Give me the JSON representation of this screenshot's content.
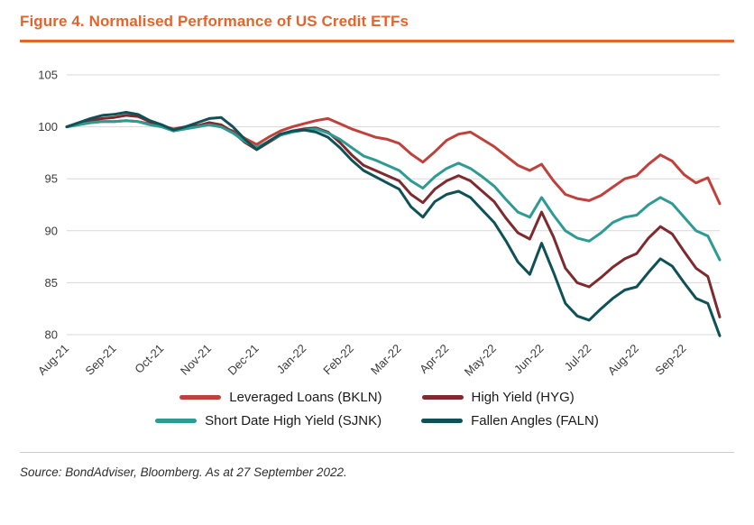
{
  "figure": {
    "title": "Figure 4. Normalised Performance of US Credit ETFs",
    "source": "Source: BondAdviser, Bloomberg. As at 27 September 2022."
  },
  "colors": {
    "title_orange": "#E2662C",
    "grid": "#D8D8D8",
    "axis_text": "#3B3B3B",
    "text": "#1A1A1A",
    "divider": "#C9C9C9"
  },
  "chart_data": {
    "type": "line",
    "title": "Figure 4. Normalised Performance of US Credit ETFs",
    "x_unit": "weekly points, 4 per month from Aug-21 to late Sep-22",
    "points_per_month": 4,
    "x_tick_labels": [
      "Aug-21",
      "Sep-21",
      "Oct-21",
      "Nov-21",
      "Dec-21",
      "Jan-22",
      "Feb-22",
      "Mar-22",
      "Apr-22",
      "May-22",
      "Jun-22",
      "Jul-22",
      "Aug-22",
      "Sep-22"
    ],
    "y_ticks": [
      105,
      100,
      95,
      90,
      85,
      80
    ],
    "ylim": [
      80,
      105
    ],
    "grid": "horizontal",
    "legend_position": "bottom",
    "series": [
      {
        "name": "Leveraged Loans (BKLN)",
        "color": "#C0413B",
        "values": [
          100.0,
          100.2,
          100.4,
          100.5,
          100.5,
          100.6,
          100.5,
          100.3,
          100.1,
          99.8,
          100.0,
          100.1,
          100.2,
          100.0,
          99.6,
          98.9,
          98.3,
          99.0,
          99.6,
          100.0,
          100.3,
          100.6,
          100.8,
          100.3,
          99.8,
          99.4,
          99.0,
          98.8,
          98.4,
          97.4,
          96.6,
          97.6,
          98.7,
          99.3,
          99.5,
          98.8,
          98.1,
          97.2,
          96.3,
          95.8,
          96.4,
          94.8,
          93.5,
          93.1,
          92.9,
          93.4,
          94.2,
          95.0,
          95.3,
          96.4,
          97.3,
          96.7,
          95.4,
          94.6,
          95.1,
          92.6
        ]
      },
      {
        "name": "High Yield (HYG)",
        "color": "#7E2A2E",
        "values": [
          100.0,
          100.3,
          100.6,
          100.8,
          100.9,
          101.1,
          101.0,
          100.5,
          100.1,
          99.7,
          99.9,
          100.1,
          100.4,
          100.2,
          99.5,
          98.5,
          97.8,
          98.5,
          99.2,
          99.6,
          99.8,
          99.9,
          99.5,
          98.5,
          97.3,
          96.3,
          95.8,
          95.3,
          94.8,
          93.5,
          92.7,
          94.0,
          94.8,
          95.3,
          94.8,
          93.8,
          92.8,
          91.2,
          89.8,
          89.2,
          91.8,
          89.4,
          86.4,
          85.0,
          84.6,
          85.5,
          86.5,
          87.3,
          87.8,
          89.3,
          90.4,
          89.7,
          88.0,
          86.4,
          85.6,
          81.7
        ]
      },
      {
        "name": "Short Date High Yield (SJNK)",
        "color": "#2D9B94",
        "values": [
          100.0,
          100.2,
          100.4,
          100.5,
          100.5,
          100.6,
          100.5,
          100.2,
          100.0,
          99.6,
          99.8,
          100.0,
          100.2,
          100.0,
          99.4,
          98.6,
          98.0,
          98.6,
          99.2,
          99.5,
          99.7,
          99.8,
          99.4,
          98.8,
          98.0,
          97.2,
          96.8,
          96.3,
          95.8,
          94.8,
          94.1,
          95.2,
          96.0,
          96.5,
          96.0,
          95.2,
          94.3,
          93.0,
          91.8,
          91.3,
          93.2,
          91.5,
          90.0,
          89.3,
          89.0,
          89.8,
          90.8,
          91.3,
          91.5,
          92.5,
          93.2,
          92.6,
          91.3,
          90.0,
          89.5,
          87.2
        ]
      },
      {
        "name": "Fallen Angles (FALN)",
        "color": "#0E5156",
        "values": [
          100.0,
          100.4,
          100.8,
          101.1,
          101.2,
          101.4,
          101.2,
          100.6,
          100.2,
          99.7,
          100.0,
          100.4,
          100.8,
          100.9,
          100.0,
          98.8,
          97.8,
          98.6,
          99.3,
          99.6,
          99.7,
          99.5,
          99.0,
          98.0,
          96.8,
          95.8,
          95.2,
          94.6,
          94.0,
          92.3,
          91.3,
          92.8,
          93.5,
          93.8,
          93.2,
          92.0,
          90.8,
          89.0,
          87.0,
          85.8,
          88.8,
          86.0,
          83.0,
          81.8,
          81.4,
          82.5,
          83.5,
          84.3,
          84.6,
          86.0,
          87.3,
          86.6,
          85.0,
          83.5,
          83.0,
          79.9
        ]
      }
    ]
  }
}
